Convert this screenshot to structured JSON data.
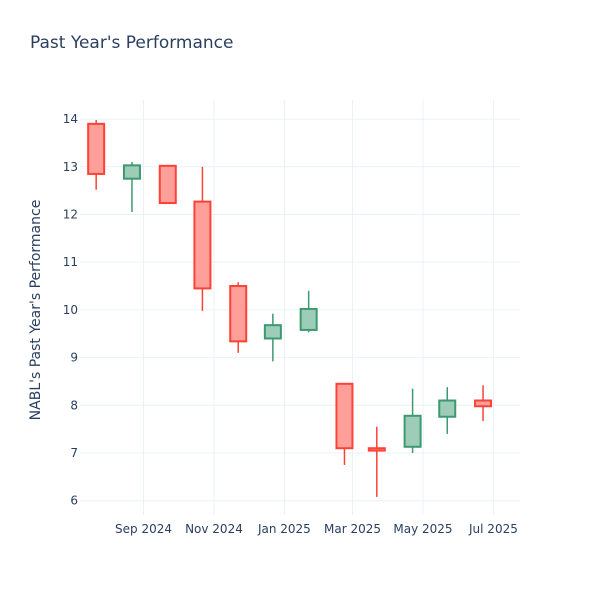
{
  "title": "Past Year's Performance",
  "colors": {
    "up_line": "#3d9970",
    "up_fill": "#9dccb8",
    "down_line": "#ff4136",
    "down_fill": "#ff9f9a",
    "text": "#2a3f5f",
    "grid": "#ebf0f8"
  },
  "chart_data": {
    "type": "candlestick",
    "title": "Past Year's Performance",
    "xlabel": "",
    "ylabel": "NABL's Past Year's Performance",
    "ylim": [
      5.7,
      14.4
    ],
    "xlim": [
      "2024-07-08",
      "2025-07-24"
    ],
    "y_ticks": [
      6,
      7,
      8,
      9,
      10,
      11,
      12,
      13,
      14
    ],
    "x_ticks": [
      {
        "date": "2024-09-01",
        "label": "Sep 2024"
      },
      {
        "date": "2024-11-01",
        "label": "Nov 2024"
      },
      {
        "date": "2025-01-01",
        "label": "Jan 2025"
      },
      {
        "date": "2025-03-01",
        "label": "Mar 2025"
      },
      {
        "date": "2025-05-01",
        "label": "May 2025"
      },
      {
        "date": "2025-07-01",
        "label": "Jul 2025"
      }
    ],
    "grid": true,
    "candles": [
      {
        "date": "2024-07-22",
        "open": 13.9,
        "high": 13.98,
        "low": 12.52,
        "close": 12.85
      },
      {
        "date": "2024-08-22",
        "open": 12.75,
        "high": 13.1,
        "low": 12.05,
        "close": 13.03
      },
      {
        "date": "2024-09-22",
        "open": 13.02,
        "high": 13.02,
        "low": 12.22,
        "close": 12.24
      },
      {
        "date": "2024-10-22",
        "open": 12.27,
        "high": 13.0,
        "low": 9.98,
        "close": 10.45
      },
      {
        "date": "2024-11-22",
        "open": 10.5,
        "high": 10.58,
        "low": 9.1,
        "close": 9.34
      },
      {
        "date": "2024-12-22",
        "open": 9.4,
        "high": 9.92,
        "low": 8.92,
        "close": 9.68
      },
      {
        "date": "2025-01-22",
        "open": 9.58,
        "high": 10.4,
        "low": 9.53,
        "close": 10.02
      },
      {
        "date": "2025-02-22",
        "open": 8.45,
        "high": 8.45,
        "low": 6.75,
        "close": 7.1
      },
      {
        "date": "2025-03-22",
        "open": 7.1,
        "high": 7.55,
        "low": 6.08,
        "close": 7.05
      },
      {
        "date": "2025-04-22",
        "open": 7.13,
        "high": 8.35,
        "low": 7.0,
        "close": 7.78
      },
      {
        "date": "2025-05-22",
        "open": 7.76,
        "high": 8.38,
        "low": 7.4,
        "close": 8.1
      },
      {
        "date": "2025-06-22",
        "open": 8.1,
        "high": 8.42,
        "low": 7.67,
        "close": 7.98
      }
    ]
  }
}
